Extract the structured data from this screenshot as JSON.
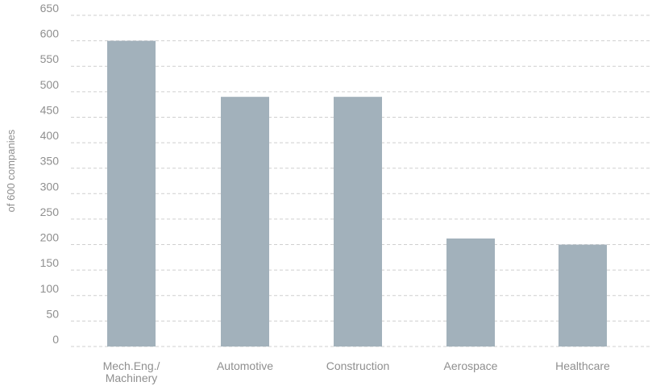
{
  "chart_data": {
    "type": "bar",
    "categories": [
      "Mech.Eng./ Machinery",
      "Automotive",
      "Construction",
      "Aerospace",
      "Healthcare"
    ],
    "category_lines": [
      [
        "Mech.Eng./",
        "Machinery"
      ],
      [
        "Automotive"
      ],
      [
        "Construction"
      ],
      [
        "Aerospace"
      ],
      [
        "Healthcare"
      ]
    ],
    "values": [
      600,
      490,
      490,
      212,
      200
    ],
    "ylabel": "of 600 companies",
    "xlabel": "",
    "ylim": [
      0,
      650
    ],
    "yticks": [
      0,
      50,
      100,
      150,
      200,
      250,
      300,
      350,
      400,
      450,
      500,
      550,
      600,
      650
    ],
    "grid": true,
    "bar_color": "#a2b1bb",
    "grid_color": "#cfcfcf",
    "text_color": "#8f8f8f"
  }
}
